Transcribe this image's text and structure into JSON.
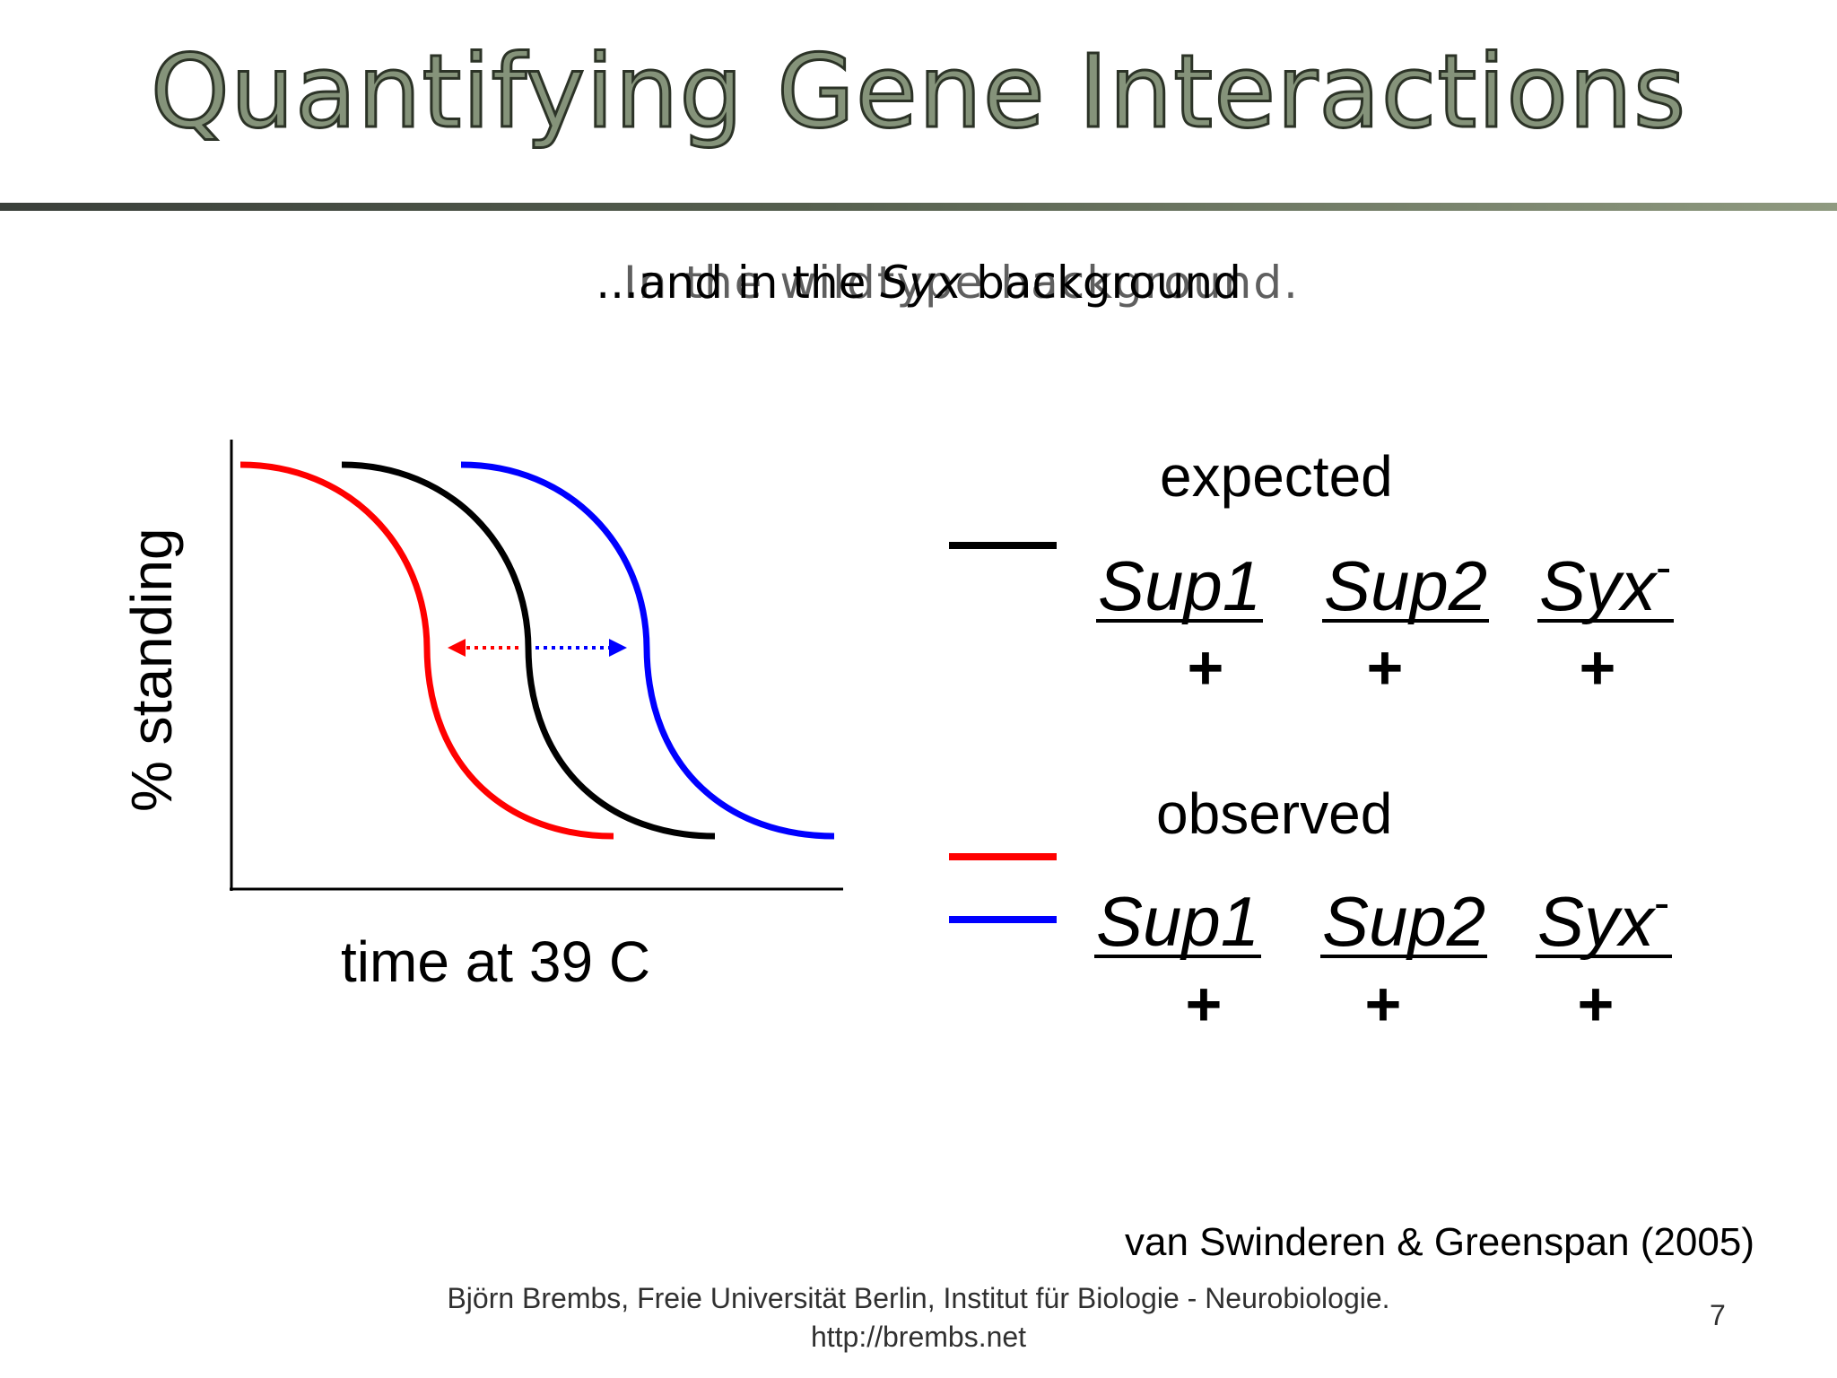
{
  "slide": {
    "title": "Quantifying Gene Interactions",
    "subtitle_back": "In the wildtype background.",
    "subtitle_front_pre": "...and in the ",
    "subtitle_front_italic": "Syx",
    "subtitle_front_post": " background",
    "citation": "van Swinderen & Greenspan (2005)",
    "footer_line1": "Björn Brembs, Freie Universität Berlin, Institut für Biologie - Neurobiologie.",
    "footer_line2": "http://brembs.net",
    "page_number": "7"
  },
  "plot": {
    "ylabel": "% standing",
    "xlabel": "time at 39 C",
    "curve_colors": {
      "red": "#ff0000",
      "black": "#000000",
      "blue": "#0000ff"
    }
  },
  "legend": {
    "expected": {
      "title": "expected",
      "swatch_color": "#000000",
      "genes": [
        "Sup1",
        "Sup2",
        "Syx"
      ],
      "last_superscript": "-",
      "plus": [
        "+",
        "+",
        "+"
      ]
    },
    "observed": {
      "title": "observed",
      "swatch_colors": [
        "#ff0000",
        "#0000ff"
      ],
      "genes": [
        "Sup1",
        "Sup2",
        "Syx"
      ],
      "last_superscript": "-",
      "plus": [
        "+",
        "+",
        "+"
      ]
    }
  }
}
